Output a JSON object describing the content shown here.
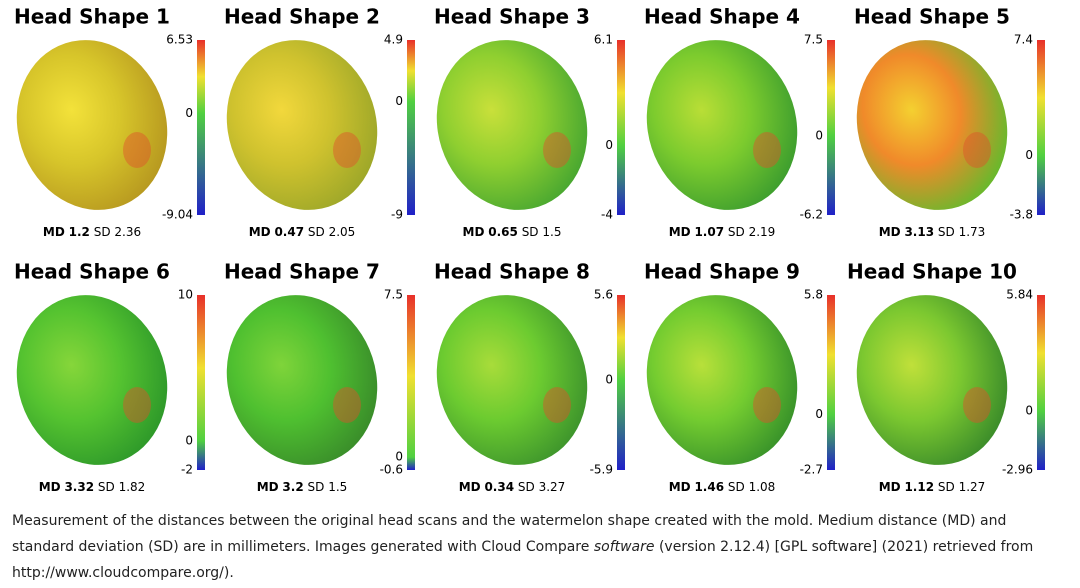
{
  "md_label": "MD",
  "sd_label": "SD",
  "panels": [
    {
      "title": "Head Shape 1",
      "scale": {
        "max": 6.53,
        "zero": 0,
        "min": -9.04
      },
      "md": 1.2,
      "sd": 2.36
    },
    {
      "title": "Head Shape 2",
      "scale": {
        "max": 4.9,
        "zero": 0,
        "min": -9
      },
      "md": 0.47,
      "sd": 2.05
    },
    {
      "title": "Head Shape 3",
      "scale": {
        "max": 6.1,
        "zero": 0,
        "min": -4
      },
      "md": 0.65,
      "sd": 1.5
    },
    {
      "title": "Head Shape 4",
      "scale": {
        "max": 7.5,
        "zero": 0,
        "min": -6.2
      },
      "md": 1.07,
      "sd": 2.19
    },
    {
      "title": "Head Shape 5",
      "scale": {
        "max": 7.4,
        "zero": 0,
        "min": -3.8
      },
      "md": 3.13,
      "sd": 1.73
    },
    {
      "title": "Head Shape 6",
      "scale": {
        "max": 10,
        "zero": 0,
        "min": -2
      },
      "md": 3.32,
      "sd": 1.82
    },
    {
      "title": "Head Shape 7",
      "scale": {
        "max": 7.5,
        "zero": 0,
        "min": -0.6
      },
      "md": 3.2,
      "sd": 1.5
    },
    {
      "title": "Head Shape 8",
      "scale": {
        "max": 5.6,
        "zero": 0,
        "min": -5.9
      },
      "md": 0.34,
      "sd": 3.27
    },
    {
      "title": "Head Shape 9",
      "scale": {
        "max": 5.8,
        "zero": 0,
        "min": -2.7
      },
      "md": 1.46,
      "sd": 1.08
    },
    {
      "title": "Head Shape 10",
      "scale": {
        "max": 5.84,
        "zero": 0,
        "min": -2.96
      },
      "md": 1.12,
      "sd": 1.27
    }
  ],
  "caption": {
    "before": "Measurement of the distances between the original head scans and the watermelon shape created with the mold. Medium distance (MD) and standard deviation (SD) are in millimeters. Images generated with Cloud Compare ",
    "italic": "software",
    "after": " (version 2.12.4) [GPL software] (2021) retrieved from http://www.cloudcompare.org/)."
  }
}
